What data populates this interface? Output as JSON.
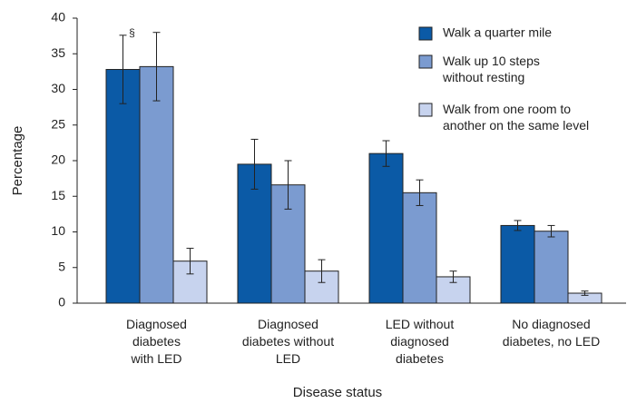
{
  "chart_data": {
    "type": "bar",
    "x_label": "Disease status",
    "y_label": "Percentage",
    "categories": [
      "Diagnosed\ndiabetes\nwith LED",
      "Diagnosed\ndiabetes without\nLED",
      "LED without\ndiagnosed\ndiabetes",
      "No diagnosed\ndiabetes, no LED"
    ],
    "series": [
      {
        "name": "Walk a quarter mile",
        "color": "#0b5aa6",
        "values": [
          32.8,
          19.5,
          21.0,
          10.9
        ],
        "errors": [
          4.8,
          3.5,
          1.8,
          0.7
        ]
      },
      {
        "name": "Walk up 10 steps\nwithout resting",
        "color": "#7b9bd0",
        "values": [
          33.2,
          16.6,
          15.5,
          10.1
        ],
        "errors": [
          4.8,
          3.4,
          1.8,
          0.8
        ]
      },
      {
        "name": "Walk from one room to\nanother on the same level",
        "color": "#c7d3ee",
        "values": [
          5.9,
          4.5,
          3.7,
          1.4
        ],
        "errors": [
          1.8,
          1.6,
          0.8,
          0.3
        ]
      }
    ],
    "annotations": [
      {
        "text": "§",
        "series": 0,
        "category": 0
      }
    ],
    "ylim": [
      0,
      40
    ],
    "yticks": [
      0,
      5,
      10,
      15,
      20,
      25,
      30,
      35,
      40
    ],
    "legend": "top-right"
  }
}
